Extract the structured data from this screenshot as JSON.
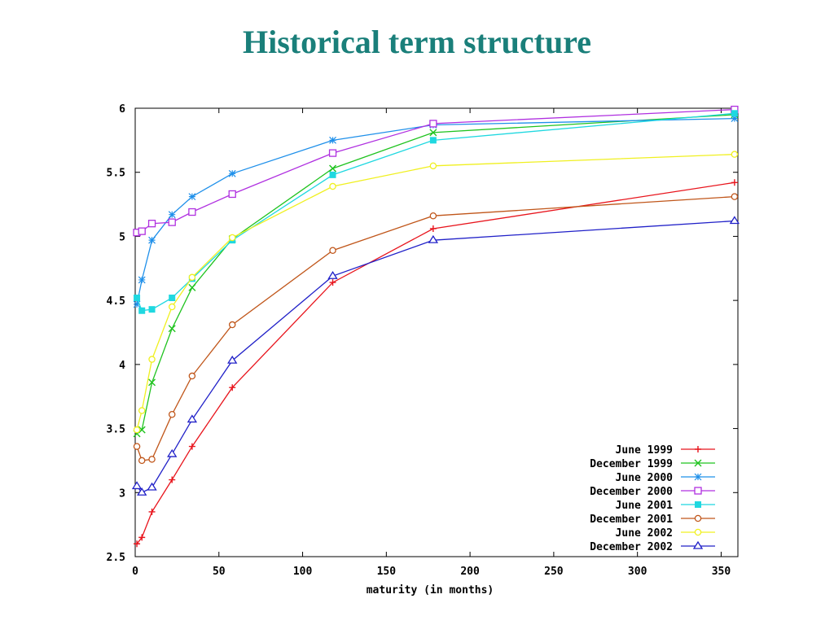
{
  "slide": {
    "title": "Historical term structure",
    "title_color": "#1a7f7a"
  },
  "chart_data": {
    "type": "line",
    "title": "",
    "xlabel": "maturity (in months)",
    "ylabel": "",
    "xlim": [
      0,
      360
    ],
    "ylim": [
      2.5,
      6
    ],
    "xticks": [
      0,
      50,
      100,
      150,
      200,
      250,
      300,
      350
    ],
    "yticks": [
      2.5,
      3,
      3.5,
      4,
      4.5,
      5,
      5.5,
      6
    ],
    "ytick_labels": [
      "2.5",
      "3",
      "3.5",
      "4",
      "4.5",
      "5",
      "5.5",
      "6"
    ],
    "grid": false,
    "legend_position": "bottom-right",
    "series": [
      {
        "name": "June 1999",
        "color": "#e8141c",
        "marker": "plus",
        "points": [
          [
            1,
            2.6
          ],
          [
            4,
            2.65
          ],
          [
            10,
            2.85
          ],
          [
            22,
            3.1
          ],
          [
            34,
            3.36
          ],
          [
            58,
            3.82
          ],
          [
            118,
            4.64
          ],
          [
            178,
            5.06
          ],
          [
            358,
            5.42
          ]
        ]
      },
      {
        "name": "December 1999",
        "color": "#1fc31f",
        "marker": "cross",
        "points": [
          [
            1,
            3.46
          ],
          [
            4,
            3.49
          ],
          [
            10,
            3.86
          ],
          [
            22,
            4.28
          ],
          [
            34,
            4.6
          ],
          [
            58,
            4.98
          ],
          [
            118,
            5.53
          ],
          [
            178,
            5.81
          ],
          [
            358,
            5.95
          ]
        ]
      },
      {
        "name": "June 2000",
        "color": "#1f90ea",
        "marker": "star",
        "points": [
          [
            1,
            4.47
          ],
          [
            4,
            4.66
          ],
          [
            10,
            4.97
          ],
          [
            22,
            5.17
          ],
          [
            34,
            5.31
          ],
          [
            58,
            5.49
          ],
          [
            118,
            5.75
          ],
          [
            178,
            5.87
          ],
          [
            358,
            5.92
          ]
        ]
      },
      {
        "name": "December 2000",
        "color": "#b030e0",
        "marker": "square-open",
        "points": [
          [
            1,
            5.03
          ],
          [
            4,
            5.04
          ],
          [
            10,
            5.1
          ],
          [
            22,
            5.11
          ],
          [
            34,
            5.19
          ],
          [
            58,
            5.33
          ],
          [
            118,
            5.65
          ],
          [
            178,
            5.88
          ],
          [
            358,
            5.99
          ]
        ]
      },
      {
        "name": "June 2001",
        "color": "#1fd8e0",
        "marker": "square-filled",
        "points": [
          [
            1,
            4.52
          ],
          [
            4,
            4.42
          ],
          [
            10,
            4.43
          ],
          [
            22,
            4.52
          ],
          [
            34,
            4.67
          ],
          [
            58,
            4.97
          ],
          [
            118,
            5.48
          ],
          [
            178,
            5.75
          ],
          [
            358,
            5.96
          ]
        ]
      },
      {
        "name": "December 2001",
        "color": "#c0561a",
        "marker": "circle-open",
        "points": [
          [
            1,
            3.36
          ],
          [
            4,
            3.25
          ],
          [
            10,
            3.26
          ],
          [
            22,
            3.61
          ],
          [
            34,
            3.91
          ],
          [
            58,
            4.31
          ],
          [
            118,
            4.89
          ],
          [
            178,
            5.16
          ],
          [
            358,
            5.31
          ]
        ]
      },
      {
        "name": "June 2002",
        "color": "#f0f020",
        "marker": "circle-open",
        "points": [
          [
            1,
            3.49
          ],
          [
            4,
            3.64
          ],
          [
            10,
            4.04
          ],
          [
            22,
            4.45
          ],
          [
            34,
            4.68
          ],
          [
            58,
            4.99
          ],
          [
            118,
            5.39
          ],
          [
            178,
            5.55
          ],
          [
            358,
            5.64
          ]
        ]
      },
      {
        "name": "December 2002",
        "color": "#2020c8",
        "marker": "triangle-open",
        "points": [
          [
            1,
            3.05
          ],
          [
            4,
            3.0
          ],
          [
            10,
            3.04
          ],
          [
            22,
            3.3
          ],
          [
            34,
            3.57
          ],
          [
            58,
            4.03
          ],
          [
            118,
            4.69
          ],
          [
            178,
            4.97
          ],
          [
            358,
            5.12
          ]
        ]
      }
    ]
  }
}
